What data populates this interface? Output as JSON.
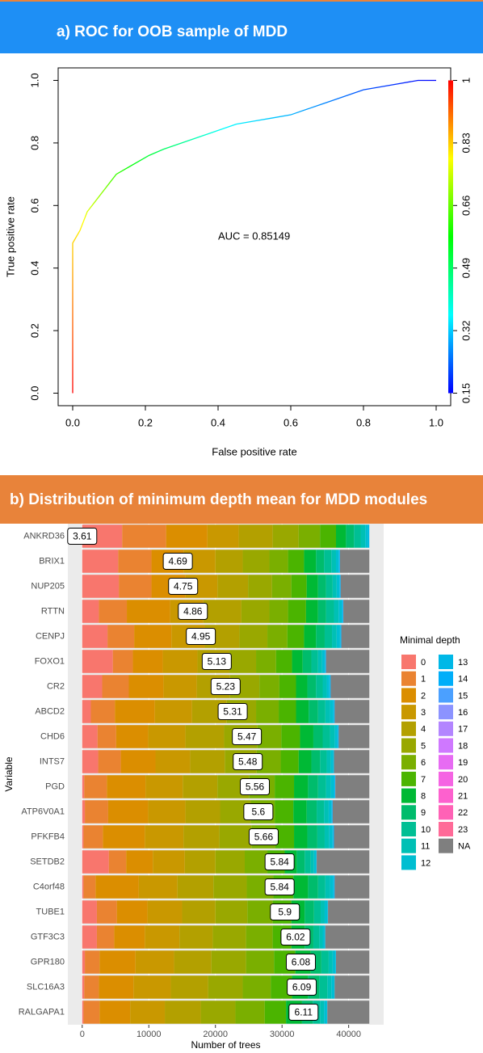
{
  "chart_data": [
    {
      "type": "line",
      "title": "a) ROC for OOB sample of MDD",
      "x_label": "False positive rate",
      "y_label": "True positive rate",
      "annotation": "AUC =  0.85149",
      "x": [
        0,
        0,
        0.01,
        0.02,
        0.03,
        0.04,
        0.06,
        0.08,
        0.1,
        0.12,
        0.15,
        0.18,
        0.21,
        0.25,
        0.3,
        0.35,
        0.4,
        0.45,
        0.5,
        0.55,
        0.6,
        0.65,
        0.7,
        0.75,
        0.8,
        0.85,
        0.9,
        0.95,
        1
      ],
      "values": [
        0,
        0.48,
        0.5,
        0.52,
        0.55,
        0.58,
        0.61,
        0.64,
        0.67,
        0.7,
        0.72,
        0.74,
        0.76,
        0.78,
        0.8,
        0.82,
        0.84,
        0.86,
        0.87,
        0.88,
        0.89,
        0.91,
        0.93,
        0.95,
        0.97,
        0.98,
        0.99,
        1,
        1
      ],
      "xlim": [
        -0.04,
        1.04
      ],
      "ylim": [
        -0.04,
        1.04
      ],
      "xticks": [
        {
          "value": 0,
          "label": "0.0"
        },
        {
          "value": 0.2,
          "label": "0.2"
        },
        {
          "value": 0.4,
          "label": "0.4"
        },
        {
          "value": 0.6,
          "label": "0.6"
        },
        {
          "value": 0.8,
          "label": "0.8"
        },
        {
          "value": 1,
          "label": "1.0"
        }
      ],
      "yticks": [
        {
          "value": 0,
          "label": "0.0"
        },
        {
          "value": 0.2,
          "label": "0.2"
        },
        {
          "value": 0.4,
          "label": "0.4"
        },
        {
          "value": 0.6,
          "label": "0.6"
        },
        {
          "value": 0.8,
          "label": "0.8"
        },
        {
          "value": 1,
          "label": "1.0"
        }
      ],
      "colorbar_lim": [
        0.15,
        1
      ],
      "colorbar_ticks": [
        0.15,
        0.32,
        0.49,
        0.66,
        0.83,
        1
      ],
      "colormap": [
        "#ff0000",
        "#ffff00",
        "#00ff00",
        "#00ffff",
        "#0000ff"
      ]
    },
    {
      "type": "stacked_bar",
      "title": "b) Distribution of minimum depth mean for MDD modules",
      "x_label": "Number of trees",
      "y_label": "Variable",
      "legend_title": "Minimal depth",
      "legend": "right",
      "grid": true,
      "categories": [
        "ANKRD36",
        "BRIX1",
        "NUP205",
        "RTTN",
        "CENPJ",
        "FOXO1",
        "CR2",
        "ABCD2",
        "CHD6",
        "INTS7",
        "PGD",
        "ATP6V0A1",
        "PFKFB4",
        "SETDB2",
        "C4orf48",
        "TUBE1",
        "GTF3C3",
        "GPR180",
        "SLC16A3",
        "RALGAPA1"
      ],
      "means": [
        3.61,
        4.69,
        4.75,
        4.86,
        4.95,
        5.13,
        5.23,
        5.31,
        5.47,
        5.48,
        5.56,
        5.6,
        5.66,
        5.84,
        5.84,
        5.9,
        6.02,
        6.08,
        6.09,
        6.11
      ],
      "xlim": [
        -2155,
        45255
      ],
      "xticks": [
        0,
        10000,
        20000,
        30000,
        40000
      ],
      "series": [
        {
          "name": "0",
          "color": "#F8766D",
          "values": [
            6000,
            5400,
            5500,
            2500,
            3800,
            4600,
            3000,
            1300,
            2300,
            2400,
            300,
            400,
            200,
            4000,
            200,
            2200,
            2200,
            400,
            300,
            200
          ]
        },
        {
          "name": "1",
          "color": "#EA8331",
          "values": [
            6600,
            5000,
            4900,
            4200,
            4000,
            3000,
            4000,
            3600,
            2800,
            3400,
            3400,
            3500,
            2900,
            2600,
            1800,
            3000,
            2600,
            2200,
            2200,
            2400
          ]
        },
        {
          "name": "2",
          "color": "#DB8E00",
          "values": [
            6200,
            4800,
            5100,
            6500,
            5600,
            4500,
            5200,
            6000,
            4800,
            5200,
            5800,
            6000,
            6300,
            4000,
            6500,
            4600,
            4600,
            5400,
            5200,
            4600
          ]
        },
        {
          "name": "3",
          "color": "#C99800",
          "values": [
            4700,
            4800,
            4800,
            5000,
            5000,
            5200,
            5000,
            5600,
            5600,
            5200,
            5600,
            5600,
            5800,
            4800,
            5800,
            5200,
            5200,
            5800,
            5600,
            5200
          ]
        },
        {
          "name": "4",
          "color": "#B3A000",
          "values": [
            5100,
            4100,
            4600,
            5700,
            5200,
            4800,
            5000,
            5200,
            5800,
            5200,
            5200,
            5200,
            5400,
            4600,
            5400,
            5000,
            5000,
            5600,
            5600,
            5400
          ]
        },
        {
          "name": "5",
          "color": "#99A800",
          "values": [
            3900,
            4000,
            3600,
            4200,
            4200,
            4000,
            4400,
            4400,
            5000,
            4800,
            4800,
            4600,
            4800,
            4400,
            5000,
            4800,
            5000,
            5200,
            5200,
            5200
          ]
        },
        {
          "name": "6",
          "color": "#7AAF00",
          "values": [
            3200,
            2800,
            2900,
            2800,
            3000,
            3000,
            3000,
            3400,
            3600,
            3600,
            3800,
            3600,
            3600,
            3400,
            4000,
            3800,
            4000,
            4200,
            4200,
            4400
          ]
        },
        {
          "name": "7",
          "color": "#4BB400",
          "values": [
            2400,
            2400,
            2300,
            2700,
            2500,
            2400,
            2500,
            2600,
            2800,
            2700,
            2900,
            2800,
            2800,
            2600,
            3000,
            2800,
            2800,
            3200,
            3200,
            3200
          ]
        },
        {
          "name": "8",
          "color": "#00B935",
          "values": [
            1500,
            1800,
            1700,
            1800,
            1800,
            1600,
            1700,
            1900,
            2000,
            1900,
            2100,
            2000,
            2000,
            1800,
            2200,
            2000,
            2000,
            2300,
            2400,
            2400
          ]
        },
        {
          "name": "9",
          "color": "#00BC6C",
          "values": [
            1200,
            1200,
            1200,
            1200,
            1300,
            1300,
            1300,
            1400,
            1400,
            1300,
            1500,
            1500,
            1500,
            1200,
            1500,
            1400,
            1300,
            1600,
            1700,
            1600
          ]
        },
        {
          "name": "10",
          "color": "#00BF94",
          "values": [
            1000,
            1100,
            1000,
            1200,
            1100,
            1000,
            1000,
            1100,
            1100,
            1000,
            1200,
            1100,
            1100,
            900,
            1100,
            1000,
            900,
            1100,
            1200,
            1100
          ]
        },
        {
          "name": "11",
          "color": "#00C0B5",
          "values": [
            700,
            700,
            600,
            700,
            700,
            600,
            600,
            700,
            700,
            600,
            700,
            700,
            700,
            500,
            700,
            600,
            500,
            600,
            600,
            600
          ]
        },
        {
          "name": "12",
          "color": "#00BED1",
          "values": [
            400,
            400,
            400,
            500,
            500,
            400,
            400,
            500,
            400,
            400,
            500,
            400,
            500,
            300,
            500,
            400,
            300,
            400,
            400,
            400
          ]
        },
        {
          "name": "13",
          "color": "#00B8E7",
          "values": [
            200,
            100,
            100,
            100,
            100,
            100,
            100,
            100,
            100,
            100,
            100,
            100,
            100,
            100,
            100,
            100,
            100,
            100,
            100,
            100
          ]
        },
        {
          "name": "14",
          "color": "#00AEF9",
          "values": [
            0,
            100,
            100,
            100,
            100,
            100,
            100,
            100,
            100,
            0,
            100,
            100,
            100,
            0,
            100,
            0,
            0,
            0,
            0,
            0
          ]
        },
        {
          "name": "15",
          "color": "#4BA0FF",
          "values": [
            0,
            0,
            0,
            0,
            0,
            0,
            0,
            0,
            0,
            0,
            0,
            0,
            0,
            0,
            0,
            0,
            0,
            0,
            0,
            0
          ]
        },
        {
          "name": "16",
          "color": "#8C93FF",
          "values": [
            0,
            0,
            0,
            0,
            0,
            0,
            0,
            0,
            0,
            0,
            0,
            0,
            0,
            0,
            0,
            0,
            0,
            0,
            0,
            0
          ]
        },
        {
          "name": "17",
          "color": "#B385FF",
          "values": [
            0,
            0,
            0,
            0,
            0,
            0,
            0,
            0,
            0,
            0,
            0,
            0,
            0,
            0,
            0,
            0,
            0,
            0,
            0,
            0
          ]
        },
        {
          "name": "18",
          "color": "#CF78FF",
          "values": [
            0,
            0,
            0,
            0,
            0,
            0,
            0,
            0,
            0,
            0,
            0,
            0,
            0,
            0,
            0,
            0,
            0,
            0,
            0,
            0
          ]
        },
        {
          "name": "19",
          "color": "#E76BF3",
          "values": [
            0,
            0,
            0,
            0,
            0,
            0,
            0,
            0,
            0,
            0,
            0,
            0,
            0,
            0,
            0,
            0,
            0,
            0,
            0,
            0
          ]
        },
        {
          "name": "20",
          "color": "#F564E3",
          "values": [
            0,
            0,
            0,
            0,
            0,
            0,
            0,
            0,
            0,
            0,
            0,
            0,
            0,
            0,
            0,
            0,
            0,
            0,
            0,
            0
          ]
        },
        {
          "name": "21",
          "color": "#FD61CE",
          "values": [
            0,
            0,
            0,
            0,
            0,
            0,
            0,
            0,
            0,
            0,
            0,
            0,
            0,
            0,
            0,
            0,
            0,
            0,
            0,
            0
          ]
        },
        {
          "name": "22",
          "color": "#FF62B6",
          "values": [
            0,
            0,
            0,
            0,
            0,
            0,
            0,
            0,
            0,
            0,
            0,
            0,
            0,
            0,
            0,
            0,
            0,
            0,
            0,
            0
          ]
        },
        {
          "name": "23",
          "color": "#FF6A98",
          "values": [
            0,
            0,
            0,
            0,
            0,
            0,
            0,
            0,
            0,
            0,
            0,
            0,
            0,
            0,
            0,
            0,
            0,
            0,
            0,
            0
          ]
        },
        {
          "name": "NA",
          "color": "#7F7F7F",
          "values": [
            0,
            4400,
            4300,
            3900,
            4200,
            6500,
            5800,
            5200,
            4600,
            5300,
            5100,
            5500,
            5300,
            7900,
            5200,
            6200,
            6600,
            5000,
            5200,
            6300
          ]
        }
      ]
    }
  ]
}
